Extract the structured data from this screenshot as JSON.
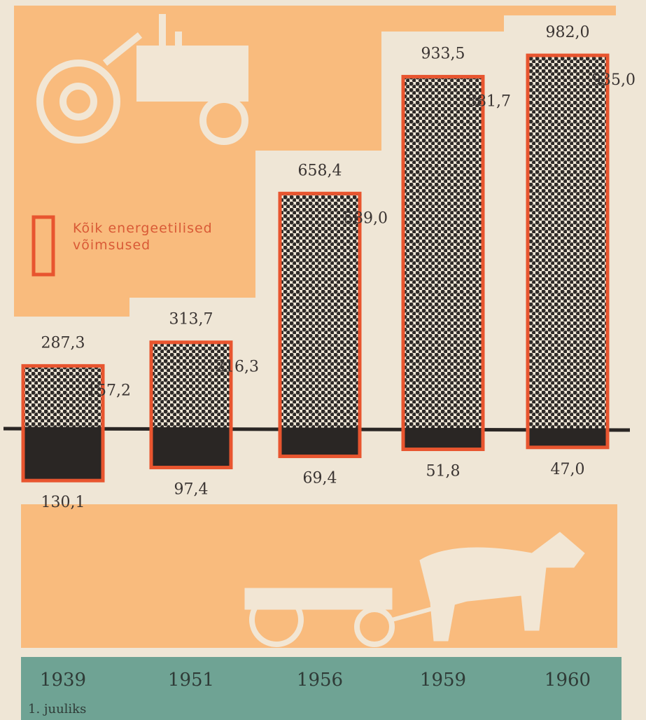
{
  "chart_data": {
    "type": "bar",
    "categories": [
      "1939",
      "1951",
      "1956",
      "1959",
      "1960"
    ],
    "footnote": "1. juuliks",
    "series": [
      {
        "name": "Kõik energeetilised võimsused",
        "color": "#e8552f",
        "values": [
          287.3,
          313.7,
          658.4,
          933.5,
          982.0
        ],
        "value_labels": [
          "287,3",
          "313,7",
          "658,4",
          "933,5",
          "982,0"
        ]
      },
      {
        "color": "#2e2a28",
        "values": [
          157.2,
          216.3,
          589.0,
          881.7,
          935.0
        ],
        "value_labels": [
          "157,2",
          "216,3",
          "589,0",
          "881,7",
          "935,0"
        ]
      },
      {
        "color": "#2a2624",
        "values": [
          130.1,
          97.4,
          69.4,
          51.8,
          47.0
        ],
        "value_labels": [
          "130,1",
          "97,4",
          "69,4",
          "51,8",
          "47,0"
        ]
      }
    ]
  }
}
